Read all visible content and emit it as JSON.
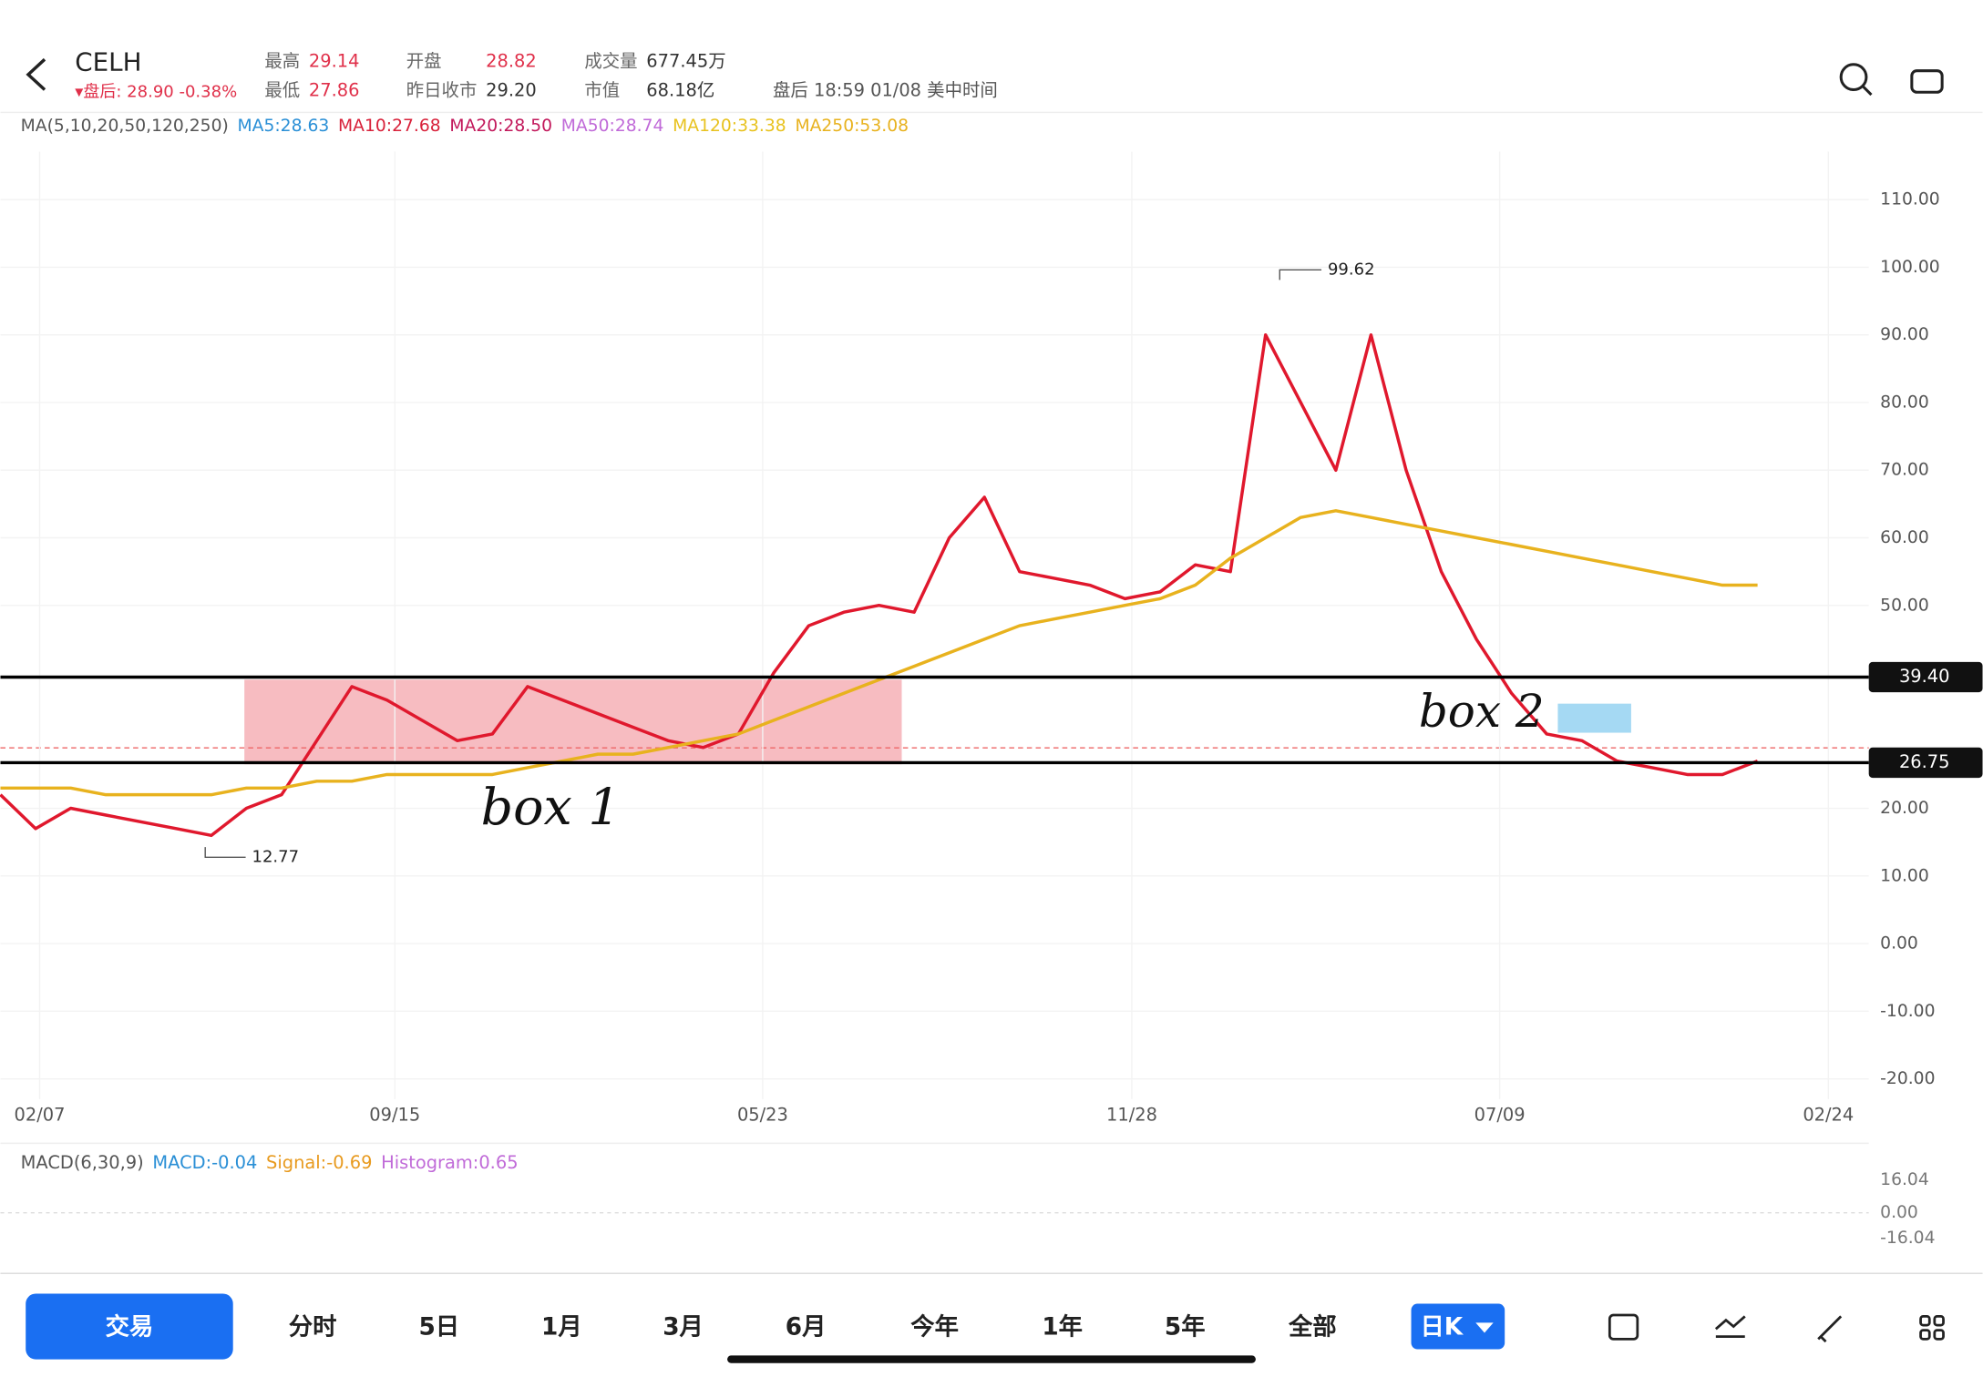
{
  "header": {
    "symbol": "CELH",
    "after_hours": "▾盘后: 28.90 -0.38%",
    "stats": [
      {
        "label": "最高",
        "value": "29.14"
      },
      {
        "label": "最低",
        "value": "27.86"
      },
      {
        "label": "开盘",
        "value": "28.82"
      },
      {
        "label": "昨日收市",
        "value": "29.20"
      },
      {
        "label": "成交量",
        "value": "677.45万"
      },
      {
        "label": "市值",
        "value": "68.18亿"
      }
    ],
    "time": "盘后 18:59 01/08 美中时间"
  },
  "ma_legend": [
    {
      "text": "MA(5,10,20,50,120,250)",
      "color": "#555555"
    },
    {
      "text": "MA5:28.63",
      "color": "#2a8fd6"
    },
    {
      "text": "MA10:27.68",
      "color": "#d8213a"
    },
    {
      "text": "MA20:28.50",
      "color": "#c2185b"
    },
    {
      "text": "MA50:28.74",
      "color": "#c06ad8"
    },
    {
      "text": "MA120:33.38",
      "color": "#e8c21e"
    },
    {
      "text": "MA250:53.08",
      "color": "#e8b21e"
    }
  ],
  "chart_data": {
    "type": "line",
    "ylim": [
      -20,
      110
    ],
    "yticks": [
      {
        "value": 110,
        "label": "110.00"
      },
      {
        "value": 100,
        "label": "100.00"
      },
      {
        "value": 90,
        "label": "90.00"
      },
      {
        "value": 80,
        "label": "80.00"
      },
      {
        "value": 70,
        "label": "70.00"
      },
      {
        "value": 60,
        "label": "60.00"
      },
      {
        "value": 50,
        "label": "50.00"
      },
      {
        "value": 20,
        "label": "20.00"
      },
      {
        "value": 10,
        "label": "10.00"
      },
      {
        "value": 0,
        "label": "0.00"
      },
      {
        "value": -10,
        "label": "-10.00"
      },
      {
        "value": -20,
        "label": "-20.00"
      }
    ],
    "date_labels": [
      "02/07",
      "09/15",
      "05/23",
      "11/28",
      "07/09",
      "02/24"
    ],
    "series": [
      {
        "color": "#e0182d",
        "values": [
          22,
          17,
          20,
          19,
          18,
          17,
          16,
          20,
          22,
          30,
          38,
          36,
          33,
          30,
          31,
          38,
          36,
          34,
          32,
          30,
          29,
          31,
          40,
          47,
          49,
          50,
          49,
          60,
          66,
          55,
          54,
          53,
          51,
          52,
          56,
          55,
          90,
          80,
          70,
          90,
          70,
          55,
          45,
          37,
          31,
          30,
          27,
          26,
          25,
          25,
          27
        ]
      },
      {
        "color": "#e8b21e",
        "values": [
          23,
          23,
          23,
          22,
          22,
          22,
          22,
          23,
          23,
          24,
          24,
          25,
          25,
          25,
          25,
          26,
          27,
          28,
          28,
          29,
          30,
          31,
          33,
          35,
          37,
          39,
          41,
          43,
          45,
          47,
          48,
          49,
          50,
          51,
          53,
          57,
          60,
          63,
          64,
          63,
          62,
          61,
          60,
          59,
          58,
          57,
          56,
          55,
          54,
          53,
          53
        ]
      }
    ],
    "levels": [
      {
        "value": 39.4,
        "label": "39.40"
      },
      {
        "value": 26.75,
        "label": "26.75"
      }
    ],
    "high": {
      "value": 99.62,
      "label": "99.62"
    },
    "low": {
      "value": 12.77,
      "label": "12.77"
    },
    "notes": [
      "box 1",
      "box 2"
    ]
  },
  "macd": {
    "items": [
      {
        "text": "MACD(6,30,9)",
        "color": "#555555"
      },
      {
        "text": "MACD:-0.04",
        "color": "#2a8fd6"
      },
      {
        "text": "Signal:-0.69",
        "color": "#e89a1e"
      },
      {
        "text": "Histogram:0.65",
        "color": "#c06ad8"
      }
    ],
    "ticks": [
      {
        "value": 16.04,
        "label": "16.04"
      },
      {
        "value": 0,
        "label": "0.00"
      },
      {
        "value": -16.04,
        "label": "-16.04"
      }
    ]
  },
  "tabs": [
    "交易",
    "分时",
    "5日",
    "1月",
    "3月",
    "6月",
    "今年",
    "1年",
    "5年",
    "全部",
    "日K"
  ]
}
